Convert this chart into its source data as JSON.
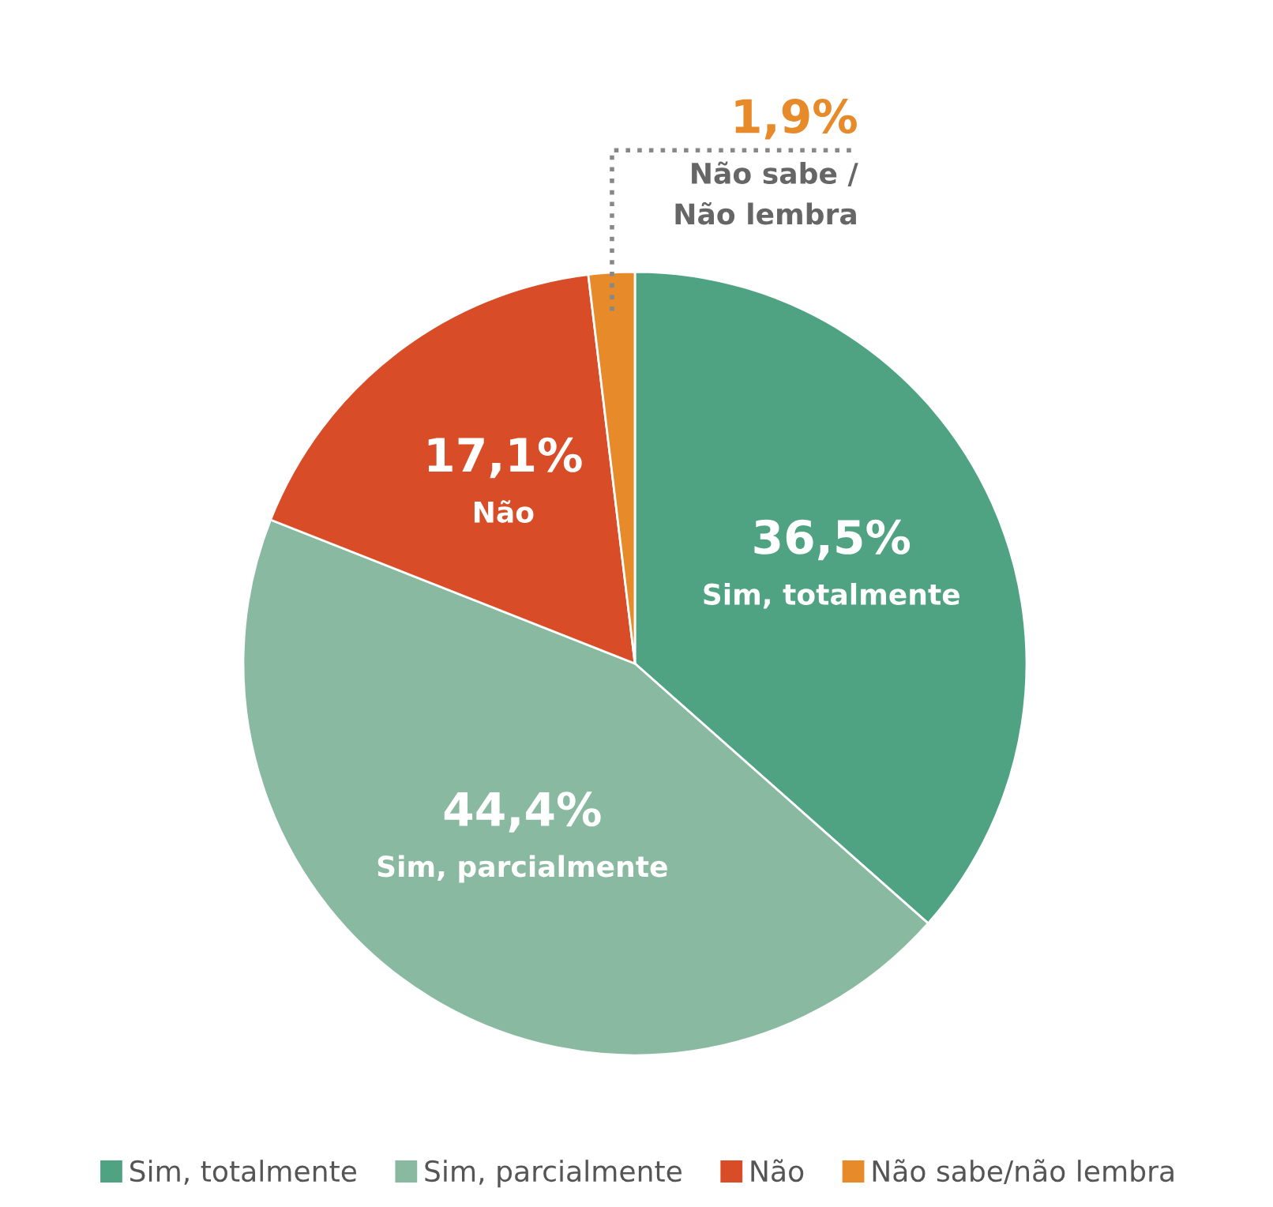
{
  "chart_data": {
    "type": "pie",
    "categories": [
      "Sim, totalmente",
      "Sim, parcialmente",
      "Não",
      "Não sabe/não lembra"
    ],
    "values": [
      36.5,
      44.4,
      17.1,
      1.9
    ],
    "value_labels": [
      "36,5%",
      "44,4%",
      "17,1%",
      "1,9%"
    ],
    "colors": [
      "#4fa383",
      "#8ab9a1",
      "#d84c27",
      "#e68a2a"
    ],
    "annotations": [
      "Sim, totalmente",
      "Sim, parcialmente",
      "Não",
      "Não sabe /\nNão lembra"
    ],
    "legend": "bottom"
  }
}
